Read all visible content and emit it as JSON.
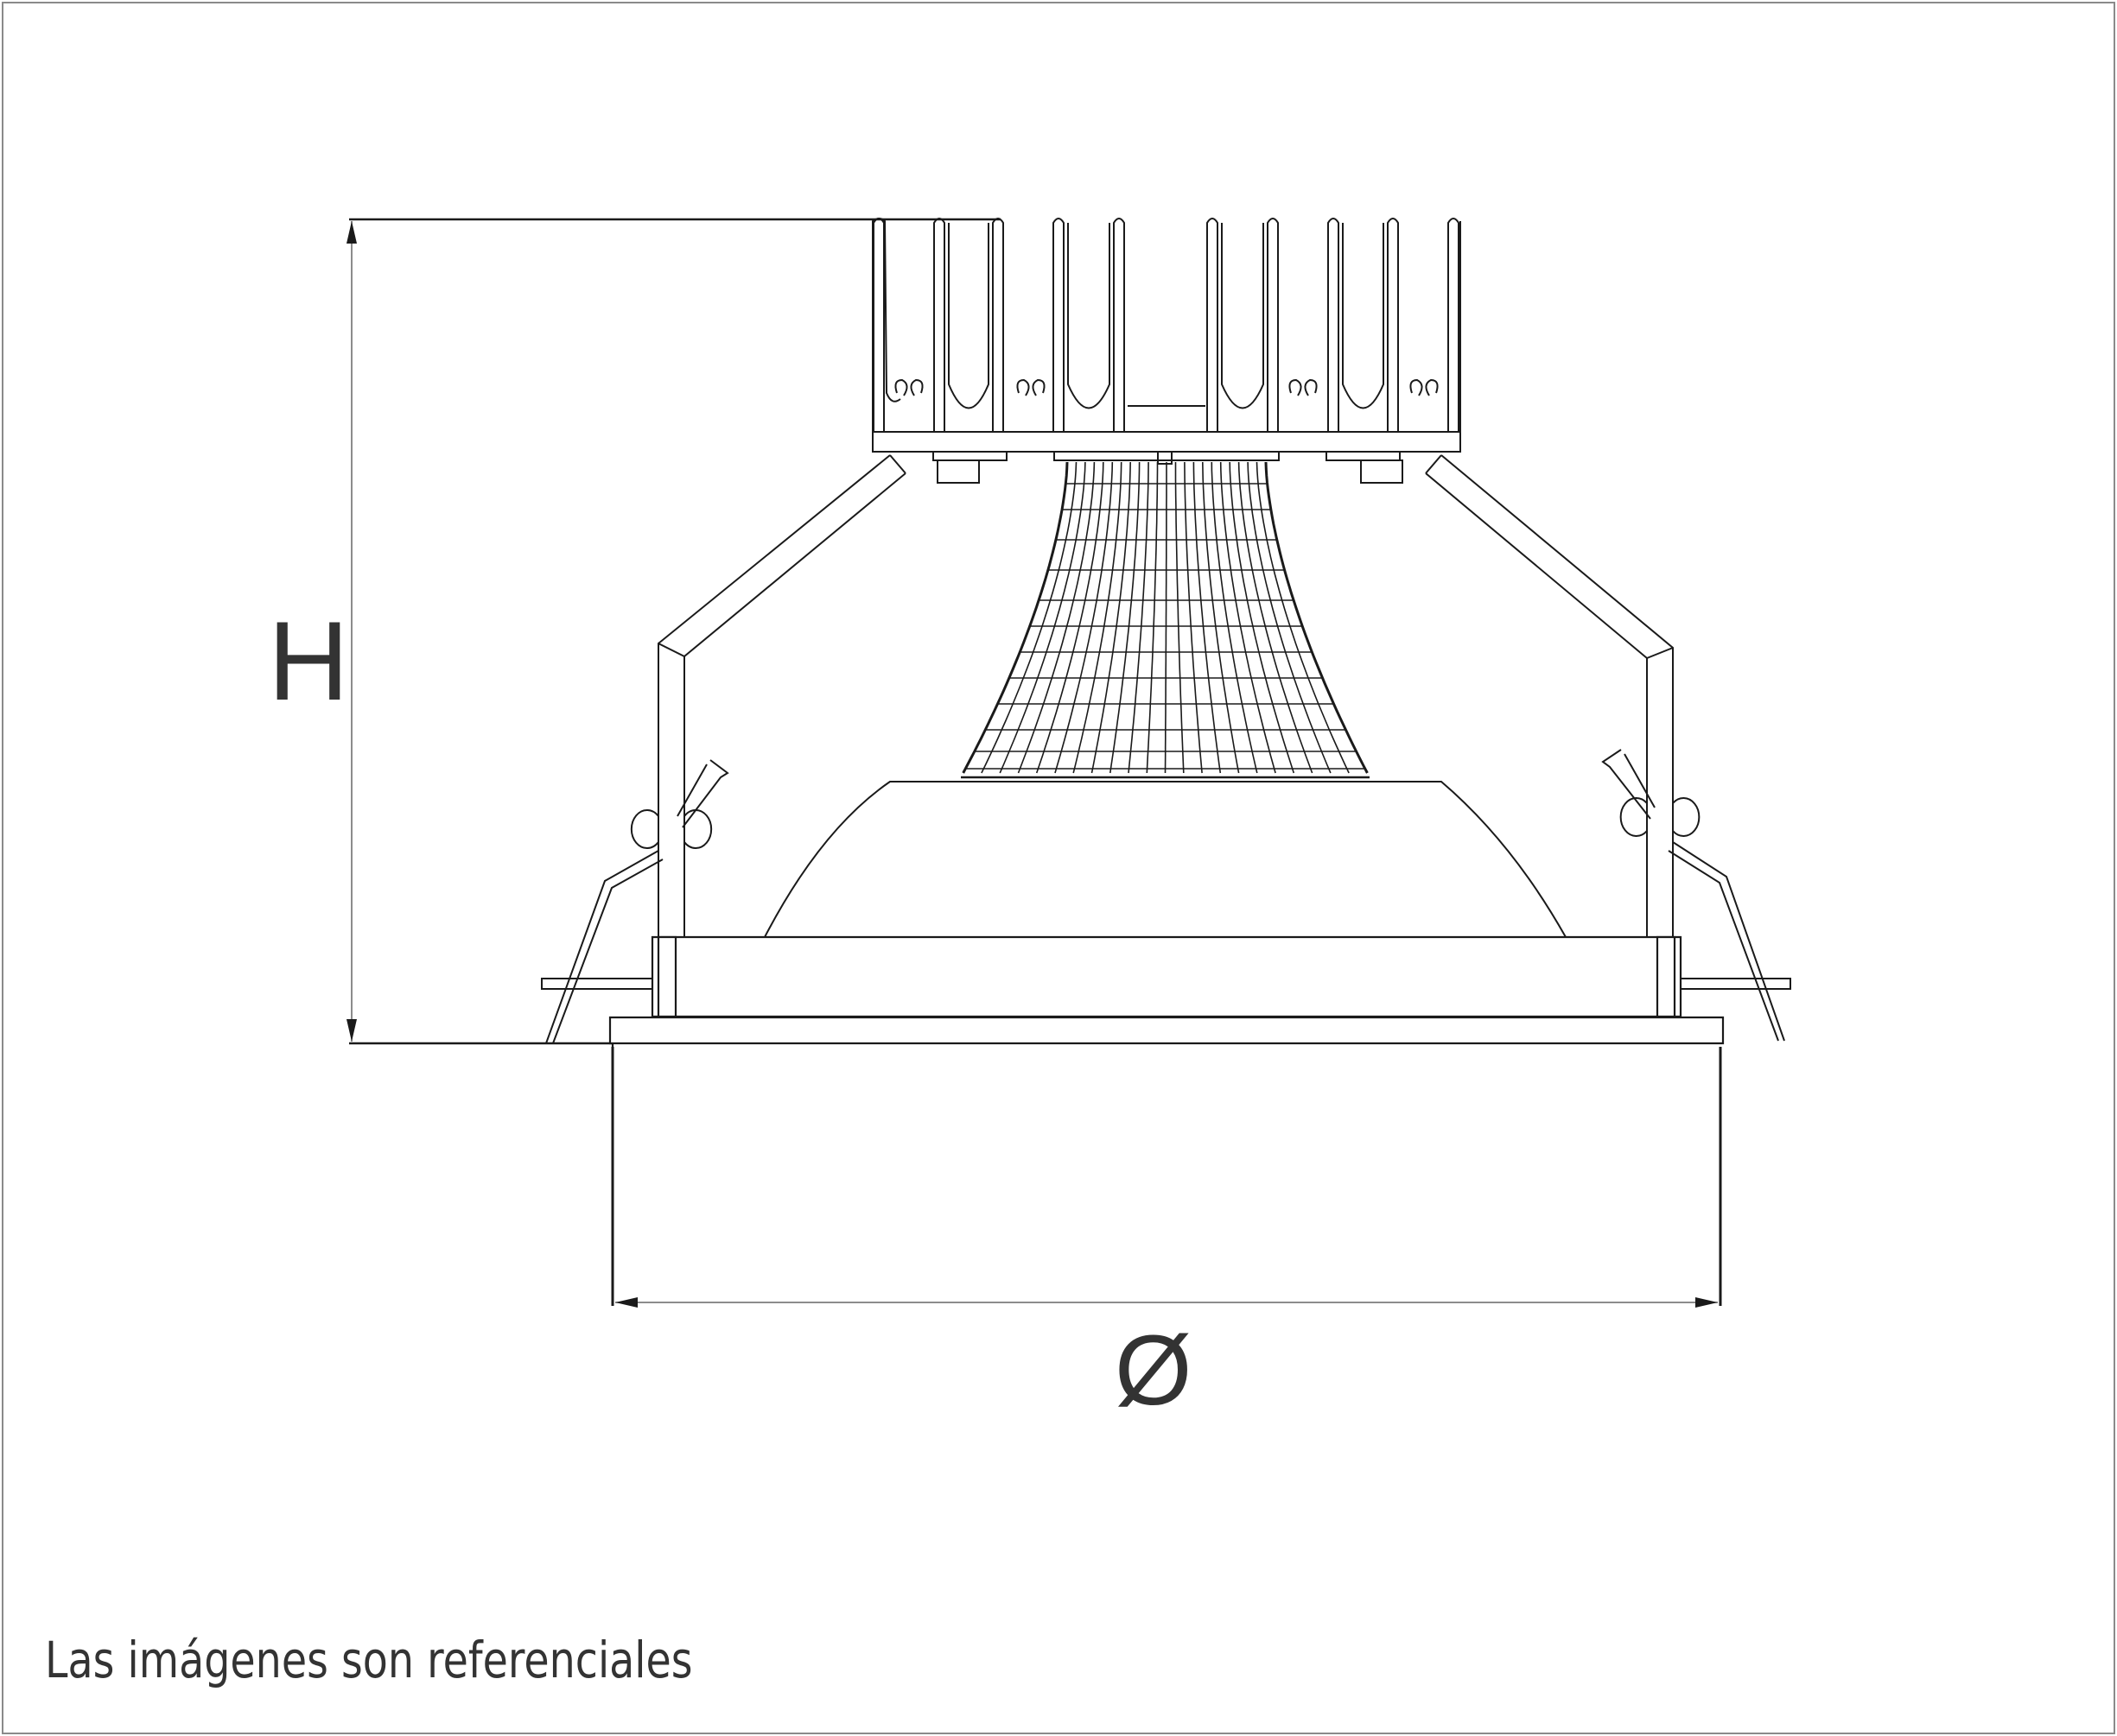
{
  "diagram": {
    "dimension_height_label": "H",
    "dimension_diameter_label": "Ø"
  },
  "caption": "Las imágenes son referenciales",
  "colors": {
    "line": "#1a1a1a",
    "dimension_line": "#555555",
    "text": "#333333",
    "frame": "#8a8a8a"
  }
}
